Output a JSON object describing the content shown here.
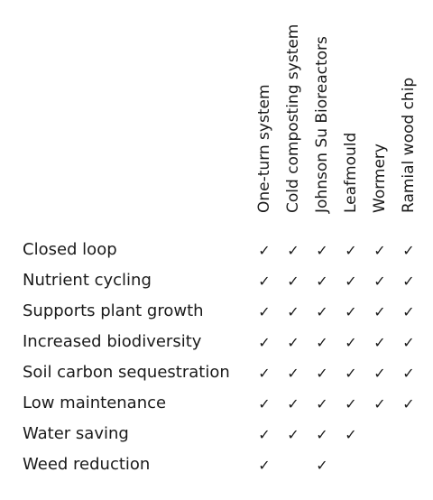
{
  "columns": [
    "One-turn system",
    "Cold composting system",
    "Johnson Su Bioreactors",
    "Leafmould",
    "Wormery",
    "Ramial wood chip"
  ],
  "check_glyph": "✓",
  "rows": [
    {
      "label": "Closed loop",
      "checks": [
        true,
        true,
        true,
        true,
        true,
        true
      ]
    },
    {
      "label": "Nutrient cycling",
      "checks": [
        true,
        true,
        true,
        true,
        true,
        true
      ]
    },
    {
      "label": "Supports plant growth",
      "checks": [
        true,
        true,
        true,
        true,
        true,
        true
      ]
    },
    {
      "label": "Increased biodiversity",
      "checks": [
        true,
        true,
        true,
        true,
        true,
        true
      ]
    },
    {
      "label": "Soil carbon sequestration",
      "checks": [
        true,
        true,
        true,
        true,
        true,
        true
      ]
    },
    {
      "label": "Low maintenance",
      "checks": [
        true,
        true,
        true,
        true,
        true,
        true
      ]
    },
    {
      "label": "Water saving",
      "checks": [
        true,
        true,
        true,
        true,
        false,
        false
      ]
    },
    {
      "label": "Weed reduction",
      "checks": [
        true,
        false,
        true,
        false,
        false,
        false
      ]
    }
  ],
  "colors": {
    "text": "#1a1a1a",
    "background": "#ffffff"
  }
}
